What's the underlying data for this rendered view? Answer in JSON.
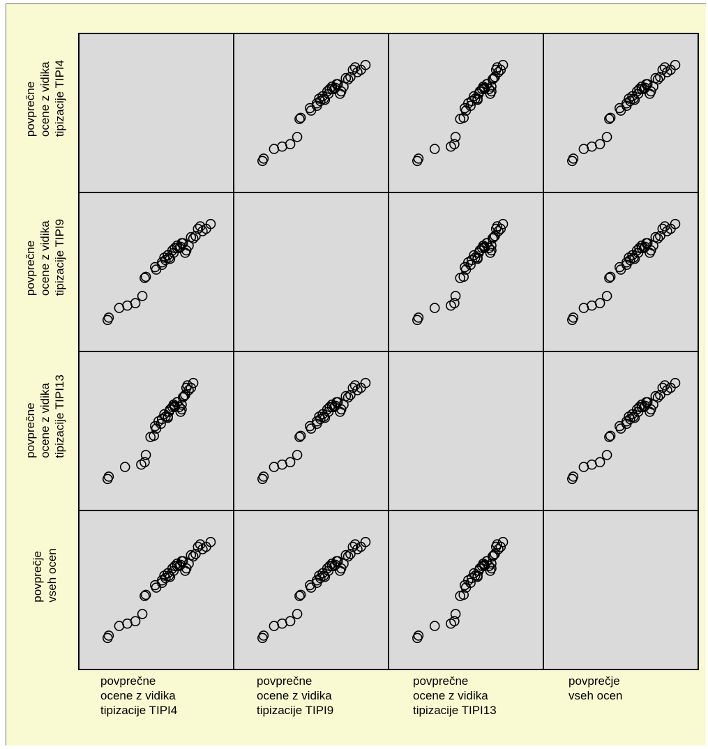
{
  "colors": {
    "background": "#fafad2",
    "panel_background": "#dadada",
    "point_stroke": "#000000"
  },
  "chart_data": {
    "type": "scatter",
    "variant": "scatterplot-matrix",
    "variables": [
      "povprečne\nocene z vidika\ntipizacije TIPI4",
      "povprečne\nocene z vidika\ntipizacije TIPI9",
      "povprečne\nocene z vidika\ntipizacije TIPI13",
      "povprečje\nvseh ocen"
    ],
    "axis_range": [
      0,
      100
    ],
    "grid": false,
    "marker": "open-circle",
    "points": {
      "x_tipi4": [
        3,
        6,
        5,
        13,
        19,
        25,
        30,
        31,
        39,
        40,
        45,
        47,
        48,
        49,
        50,
        51,
        53,
        52,
        54,
        55,
        58,
        60,
        61,
        62,
        66,
        68,
        70,
        71,
        75,
        74,
        76,
        80,
        86,
        88,
        92,
        94,
        97
      ],
      "y_tipi4": [
        10,
        12,
        20,
        22,
        24,
        30,
        45,
        46,
        52,
        54,
        56,
        58,
        60,
        62,
        64,
        62,
        61,
        66,
        68,
        70,
        72,
        70,
        71,
        74,
        70,
        66,
        74,
        68,
        72,
        79,
        78,
        80,
        86,
        88,
        84,
        86,
        90
      ],
      "x_tipi9": [
        8,
        9,
        18,
        25,
        32,
        38,
        40,
        41,
        50,
        49,
        55,
        55,
        58,
        57,
        60,
        61,
        62,
        65,
        64,
        66,
        68,
        70,
        71,
        72,
        68,
        75,
        73,
        76,
        78,
        80,
        82,
        84,
        86,
        88,
        90,
        93,
        97
      ],
      "y_tipi9": [
        10,
        12,
        20,
        22,
        24,
        30,
        45,
        46,
        52,
        54,
        56,
        58,
        60,
        62,
        64,
        62,
        61,
        66,
        68,
        70,
        72,
        70,
        71,
        74,
        70,
        66,
        74,
        68,
        72,
        79,
        78,
        80,
        86,
        88,
        84,
        86,
        90
      ],
      "x_tipi13": [
        8,
        9,
        23,
        37,
        40,
        41,
        45,
        48,
        50,
        49,
        54,
        52,
        55,
        58,
        57,
        60,
        60,
        61,
        62,
        64,
        65,
        66,
        66,
        68,
        70,
        71,
        68,
        72,
        72,
        74,
        73,
        75,
        76,
        77,
        78,
        80,
        82
      ],
      "y_tipi13": [
        10,
        12,
        20,
        22,
        24,
        30,
        45,
        46,
        52,
        54,
        56,
        58,
        60,
        62,
        64,
        62,
        61,
        66,
        68,
        70,
        72,
        70,
        71,
        74,
        70,
        66,
        74,
        68,
        72,
        79,
        78,
        80,
        86,
        88,
        84,
        86,
        90
      ],
      "x_all": [
        8,
        9,
        18,
        25,
        32,
        38,
        40,
        41,
        50,
        49,
        55,
        55,
        58,
        57,
        60,
        61,
        62,
        65,
        64,
        66,
        68,
        70,
        71,
        72,
        68,
        75,
        73,
        76,
        78,
        80,
        82,
        84,
        86,
        88,
        90,
        93,
        97
      ],
      "y_all": [
        10,
        12,
        20,
        22,
        24,
        30,
        45,
        46,
        52,
        54,
        56,
        58,
        60,
        62,
        64,
        62,
        61,
        66,
        68,
        70,
        72,
        70,
        71,
        74,
        70,
        66,
        74,
        68,
        72,
        79,
        78,
        80,
        86,
        88,
        84,
        86,
        90
      ]
    }
  }
}
